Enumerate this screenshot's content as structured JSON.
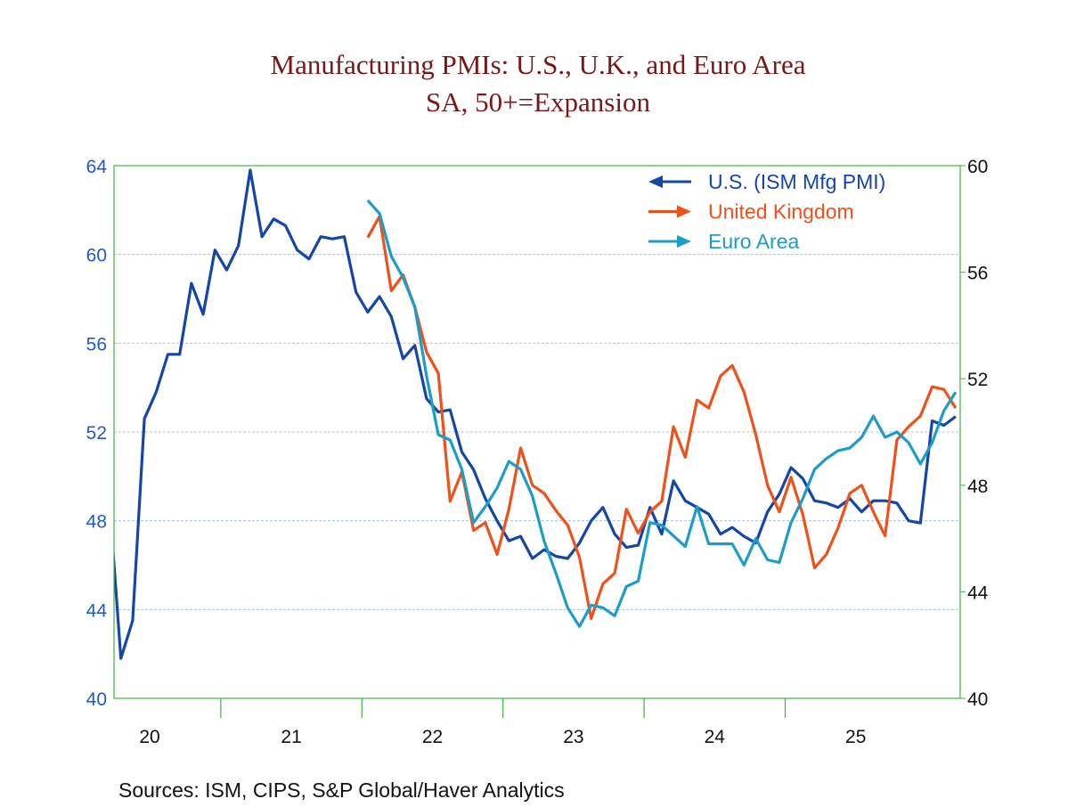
{
  "chart_data": {
    "type": "line",
    "title": "Manufacturing PMIs: U.S., U.K., and Euro Area",
    "subtitle": "SA, 50+=Expansion",
    "frequency": "monthly",
    "x_tick_labels": [
      "20",
      "21",
      "22",
      "23",
      "24",
      "25"
    ],
    "x_range": [
      "2020-04",
      "2026-03"
    ],
    "y_left": {
      "ylim": [
        40,
        64
      ],
      "ticks": [
        40,
        44,
        48,
        52,
        56,
        60,
        64
      ]
    },
    "y_right": {
      "ylim": [
        40,
        60
      ],
      "ticks": [
        40,
        44,
        48,
        52,
        56,
        60
      ]
    },
    "grid": "horizontal dashed at left-axis ticks",
    "legend_position": "top-right",
    "series": [
      {
        "name": "U.S. (ISM Mfg PMI)",
        "axis": "left",
        "color": "#1446a8",
        "legend_arrow": "left",
        "start": "2020-03",
        "values": [
          49.1,
          41.8,
          43.5,
          52.6,
          53.8,
          55.5,
          55.5,
          58.7,
          57.3,
          60.2,
          59.3,
          60.4,
          63.8,
          60.8,
          61.6,
          61.3,
          60.2,
          59.8,
          60.8,
          60.7,
          60.8,
          58.3,
          57.4,
          58.1,
          57.2,
          55.3,
          55.9,
          53.5,
          52.9,
          53.0,
          51.1,
          50.3,
          49.0,
          48.0,
          47.1,
          47.3,
          46.3,
          46.7,
          46.4,
          46.3,
          47.0,
          48.0,
          48.6,
          47.4,
          46.8,
          46.9,
          48.6,
          47.4,
          49.8,
          48.9,
          48.6,
          48.3,
          47.4,
          47.7,
          47.3,
          47.0,
          48.4,
          49.2,
          50.4,
          49.9,
          48.9,
          48.8,
          48.6,
          49.0,
          48.4,
          48.9,
          48.9,
          48.8,
          48.0,
          47.9,
          52.5,
          52.3,
          52.7
        ]
      },
      {
        "name": "United Kingdom",
        "axis": "right",
        "color": "#f0501a",
        "legend_arrow": "right",
        "start": "2022-01",
        "values": [
          57.3,
          58.1,
          55.3,
          55.9,
          54.7,
          53.0,
          52.2,
          47.4,
          48.5,
          46.3,
          46.6,
          45.4,
          47.1,
          49.4,
          48.0,
          47.7,
          47.05,
          46.5,
          45.3,
          43.0,
          44.3,
          44.7,
          47.1,
          46.2,
          47.0,
          47.4,
          50.2,
          49.05,
          51.2,
          50.9,
          52.1,
          52.5,
          51.5,
          49.9,
          48.0,
          47.0,
          48.3,
          46.9,
          44.9,
          45.4,
          46.4,
          47.7,
          48.0,
          47.0,
          46.1,
          49.7,
          50.2,
          50.6,
          51.7,
          51.6,
          50.9
        ]
      },
      {
        "name": "Euro Area",
        "axis": "right",
        "color": "#1c9cc9",
        "legend_arrow": "right",
        "start": "2022-01",
        "values": [
          58.7,
          58.2,
          56.6,
          55.8,
          54.7,
          52.1,
          49.9,
          49.7,
          48.6,
          46.6,
          47.2,
          47.9,
          48.9,
          48.6,
          47.6,
          45.9,
          44.7,
          43.4,
          42.7,
          43.5,
          43.4,
          43.1,
          44.2,
          44.4,
          46.6,
          46.5,
          46.1,
          45.7,
          47.2,
          45.8,
          45.8,
          45.8,
          45.0,
          46.0,
          45.2,
          45.1,
          46.6,
          47.5,
          48.6,
          49.0,
          49.3,
          49.4,
          49.8,
          50.6,
          49.8,
          50.0,
          49.6,
          48.8,
          49.6,
          50.8,
          51.5
        ]
      }
    ],
    "source": "Sources:   ISM, CIPS, S&P Global/Haver Analytics"
  },
  "colors": {
    "title": "#7b1616",
    "left_axis": "#1f5cbf",
    "frame": "#3cb43c",
    "grid": "#a9c2dc"
  }
}
